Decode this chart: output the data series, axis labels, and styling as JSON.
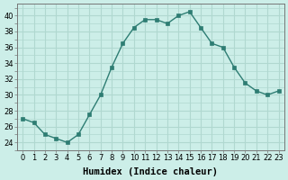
{
  "x": [
    0,
    1,
    2,
    3,
    4,
    5,
    6,
    7,
    8,
    9,
    10,
    11,
    12,
    13,
    14,
    15,
    16,
    17,
    18,
    19,
    20,
    21,
    22,
    23
  ],
  "y": [
    27,
    26.5,
    25,
    24.5,
    24,
    25,
    27.5,
    30,
    33.5,
    36.5,
    38.5,
    39.5,
    39.5,
    39,
    40,
    40.5,
    38.5,
    36.5,
    36,
    33.5,
    31.5,
    30.5,
    30,
    30.5
  ],
  "line_color": "#2e7d73",
  "marker": "s",
  "markersize": 2.5,
  "linewidth": 1.0,
  "bg_color": "#cceee8",
  "grid_color": "#b0d8d0",
  "tick_color": "#000000",
  "xlabel": "Humidex (Indice chaleur)",
  "xlabel_fontsize": 7.5,
  "ylabel_ticks": [
    24,
    26,
    28,
    30,
    32,
    34,
    36,
    38,
    40
  ],
  "xlim": [
    -0.5,
    23.5
  ],
  "ylim": [
    23.0,
    41.5
  ],
  "xtick_labels": [
    "0",
    "1",
    "2",
    "3",
    "4",
    "5",
    "6",
    "7",
    "8",
    "9",
    "10",
    "11",
    "12",
    "13",
    "14",
    "15",
    "16",
    "17",
    "18",
    "19",
    "20",
    "21",
    "22",
    "23"
  ],
  "tick_fontsize": 6.0,
  "xlabel_fontweight": "bold"
}
